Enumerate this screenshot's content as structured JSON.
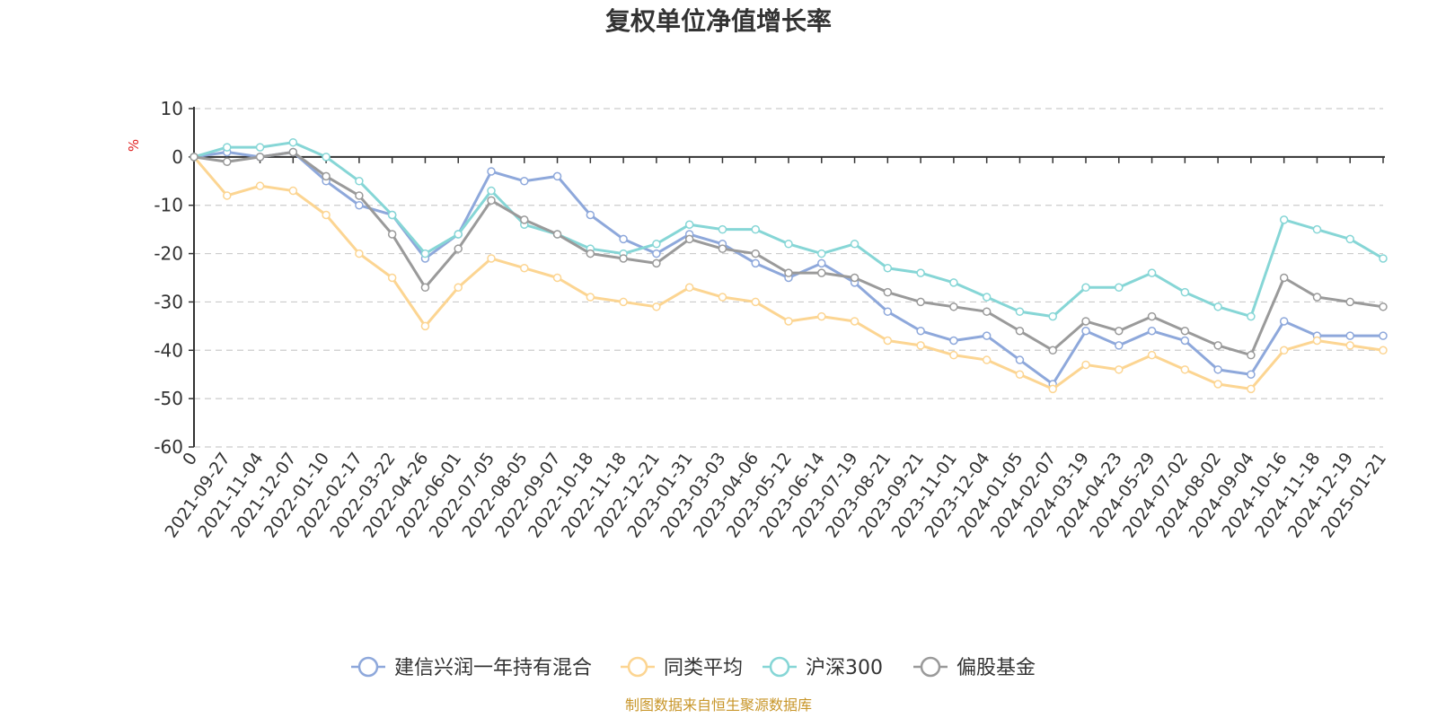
{
  "chart_data": {
    "type": "line",
    "title": "复权单位净值增长率",
    "ylabel": "%",
    "ylim": [
      -60,
      10
    ],
    "yticks": [
      10,
      0,
      -10,
      -20,
      -30,
      -40,
      -50,
      -60
    ],
    "xlabel": "",
    "categories": [
      "0",
      "2021-09-27",
      "2021-11-04",
      "2021-12-07",
      "2022-01-10",
      "2022-02-17",
      "2022-03-22",
      "2022-04-26",
      "2022-06-01",
      "2022-07-05",
      "2022-08-05",
      "2022-09-07",
      "2022-10-18",
      "2022-11-18",
      "2022-12-21",
      "2023-01-31",
      "2023-03-03",
      "2023-04-06",
      "2023-05-12",
      "2023-06-14",
      "2023-07-19",
      "2023-08-21",
      "2023-09-21",
      "2023-11-01",
      "2023-12-04",
      "2024-01-05",
      "2024-02-07",
      "2024-03-19",
      "2024-04-23",
      "2024-05-29",
      "2024-07-02",
      "2024-08-02",
      "2024-09-04",
      "2024-10-16",
      "2024-11-18",
      "2024-12-19",
      "2025-01-21"
    ],
    "grid": true,
    "legend_position": "bottom",
    "series": [
      {
        "name": "建信兴润一年持有混合",
        "color": "#8ea8db",
        "values": [
          0,
          1,
          0,
          1,
          -5,
          -10,
          -12,
          -21,
          -16,
          -3,
          -5,
          -4,
          -12,
          -17,
          -20,
          -16,
          -18,
          -22,
          -25,
          -22,
          -26,
          -32,
          -36,
          -38,
          -37,
          -42,
          -47,
          -36,
          -39,
          -36,
          -38,
          -44,
          -45,
          -34,
          -37,
          -37,
          -37
        ]
      },
      {
        "name": "同类平均",
        "color": "#fcd592",
        "values": [
          0,
          -8,
          -6,
          -7,
          -12,
          -20,
          -25,
          -35,
          -27,
          -21,
          -23,
          -25,
          -29,
          -30,
          -31,
          -27,
          -29,
          -30,
          -34,
          -33,
          -34,
          -38,
          -39,
          -41,
          -42,
          -45,
          -48,
          -43,
          -44,
          -41,
          -44,
          -47,
          -48,
          -40,
          -38,
          -39,
          -40
        ]
      },
      {
        "name": "沪深300",
        "color": "#86d6d6",
        "values": [
          0,
          2,
          2,
          3,
          0,
          -5,
          -12,
          -20,
          -16,
          -7,
          -14,
          -16,
          -19,
          -20,
          -18,
          -14,
          -15,
          -15,
          -18,
          -20,
          -18,
          -23,
          -24,
          -26,
          -29,
          -32,
          -33,
          -27,
          -27,
          -24,
          -28,
          -31,
          -33,
          -13,
          -15,
          -17,
          -21
        ]
      },
      {
        "name": "偏股基金",
        "color": "#9a9a9a",
        "values": [
          0,
          -1,
          0,
          1,
          -4,
          -8,
          -16,
          -27,
          -19,
          -9,
          -13,
          -16,
          -20,
          -21,
          -22,
          -17,
          -19,
          -20,
          -24,
          -24,
          -25,
          -28,
          -30,
          -31,
          -32,
          -36,
          -40,
          -34,
          -36,
          -33,
          -36,
          -39,
          -41,
          -25,
          -29,
          -30,
          -31
        ]
      }
    ]
  },
  "legend": [
    {
      "label": "建信兴润一年持有混合",
      "color": "#8ea8db"
    },
    {
      "label": "同类平均",
      "color": "#fcd592"
    },
    {
      "label": "沪深300",
      "color": "#86d6d6"
    },
    {
      "label": "偏股基金",
      "color": "#9a9a9a"
    }
  ],
  "source_note": "制图数据来自恒生聚源数据库"
}
